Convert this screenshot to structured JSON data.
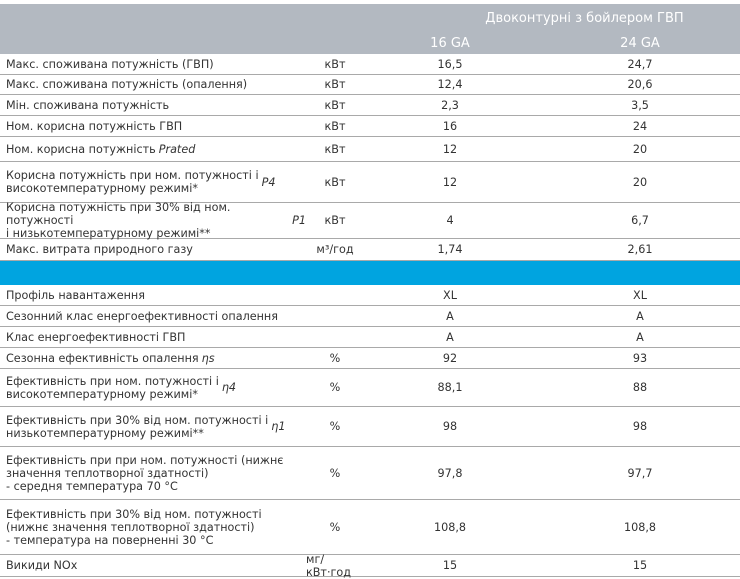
{
  "header": {
    "group_title": "Двоконтурні з бойлером ГВП",
    "col1": "16 GA",
    "col2": "24 GA"
  },
  "rows_top": [
    {
      "label": "Макс. споживана потужність (ГВП)",
      "unit": "кВт",
      "v1": "16,5",
      "v2": "24,7"
    },
    {
      "label": "Макс. споживана потужність (опалення)",
      "unit": "кВт",
      "v1": "12,4",
      "v2": "20,6"
    },
    {
      "label": "Мін. споживана потужність",
      "unit": "кВт",
      "v1": "2,3",
      "v2": "3,5"
    },
    {
      "label": "Ном. корисна потужність ГВП",
      "unit": "кВт",
      "v1": "16",
      "v2": "24"
    },
    {
      "label": "Ном. корисна потужність",
      "em": "Prated",
      "unit": "кВт",
      "v1": "12",
      "v2": "20"
    },
    {
      "label": "Корисна потужність при ном. потужності і\nвисокотемпературному режимі*",
      "em": "P4",
      "unit": "кВт",
      "v1": "12",
      "v2": "20"
    },
    {
      "label": "Корисна потужність при 30% від ном. потужності\nі низькотемпературному режимі**",
      "em": "P1",
      "unit": "кВт",
      "v1": "4",
      "v2": "6,7"
    },
    {
      "label": "Макс. витрата природного газу",
      "unit": "м³/год",
      "v1": "1,74",
      "v2": "2,61"
    }
  ],
  "rows_bottom": [
    {
      "label": "Профіль навантаження",
      "unit": "",
      "v1": "XL",
      "v2": "XL"
    },
    {
      "label": "Сезонний клас енергоефективності опалення",
      "unit": "",
      "v1": "A",
      "v2": "A"
    },
    {
      "label": "Клас енергоефективності ГВП",
      "unit": "",
      "v1": "A",
      "v2": "A"
    },
    {
      "label": "Сезонна ефективність опалення",
      "em": "ηs",
      "unit": "%",
      "v1": "92",
      "v2": "93"
    },
    {
      "label": "Ефективність при ном. потужності і\nвисокотемпературному режимі*",
      "em": "η4",
      "unit": "%",
      "v1": "88,1",
      "v2": "88"
    },
    {
      "label": "Ефективність при 30% від ном. потужності і\nнизькотемпературному режимі**",
      "em": "η1",
      "unit": "%",
      "v1": "98",
      "v2": "98"
    },
    {
      "label": "Ефективність при при ном. потужності (нижнє\nзначення теплотворної здатності)\n- середня температура 70 °C",
      "unit": "%",
      "v1": "97,8",
      "v2": "97,7"
    },
    {
      "label": "Ефективність при 30% від ном. потужності\n(нижнє значення теплотворної здатності)\n- температура на поверненні 30 °C",
      "unit": "%",
      "v1": "108,8",
      "v2": "108,8"
    },
    {
      "label": "Викиди NOx",
      "unit": "мг/кВт·год",
      "v1": "15",
      "v2": "15"
    }
  ],
  "colors": {
    "header_bg": "#b3b9c1",
    "band": "#00a4e0",
    "text": "#333333"
  }
}
